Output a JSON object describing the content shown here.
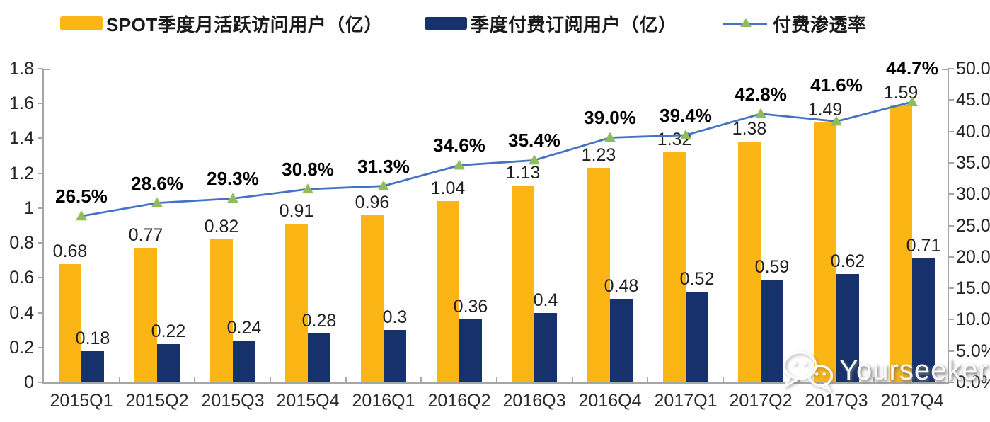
{
  "legend": [
    {
      "label": "SPOT季度月活跃访问用户（亿）",
      "swatch": "bar",
      "color": "#FBB616"
    },
    {
      "label": "季度付费订阅用户（亿）",
      "swatch": "bar",
      "color": "#17316D"
    },
    {
      "label": "付费渗透率",
      "swatch": "line",
      "color": "#4472C4",
      "marker_color": "#8FBD59"
    }
  ],
  "watermark": {
    "text": "Yourseeker",
    "icon": "wechat-logo"
  },
  "chart_data": {
    "type": "combo-bar-line",
    "title": "",
    "categories": [
      "2015Q1",
      "2015Q2",
      "2015Q3",
      "2015Q4",
      "2016Q1",
      "2016Q2",
      "2016Q3",
      "2016Q4",
      "2017Q1",
      "2017Q2",
      "2017Q3",
      "2017Q4"
    ],
    "series": [
      {
        "name": "SPOT季度月活跃访问用户（亿）",
        "type": "bar",
        "axis": "left",
        "color": "#FBB616",
        "values": [
          0.68,
          0.77,
          0.82,
          0.91,
          0.96,
          1.04,
          1.13,
          1.23,
          1.32,
          1.38,
          1.49,
          1.59
        ],
        "labels": [
          "0.68",
          "0.77",
          "0.82",
          "0.91",
          "0.96",
          "1.04",
          "1.13",
          "1.23",
          "1.32",
          "1.38",
          "1.49",
          "1.59"
        ]
      },
      {
        "name": "季度付费订阅用户（亿）",
        "type": "bar",
        "axis": "left",
        "color": "#17316D",
        "values": [
          0.18,
          0.22,
          0.24,
          0.28,
          0.3,
          0.36,
          0.4,
          0.48,
          0.52,
          0.59,
          0.62,
          0.71
        ],
        "labels": [
          "0.18",
          "0.22",
          "0.24",
          "0.28",
          "0.3",
          "0.36",
          "0.4",
          "0.48",
          "0.52",
          "0.59",
          "0.62",
          "0.71"
        ]
      },
      {
        "name": "付费渗透率",
        "type": "line",
        "axis": "right",
        "color": "#4472C4",
        "marker": "triangle",
        "marker_color": "#8FBD59",
        "values": [
          26.5,
          28.6,
          29.3,
          30.8,
          31.3,
          34.6,
          35.4,
          39.0,
          39.4,
          42.8,
          41.6,
          44.7
        ],
        "labels": [
          "26.5%",
          "28.6%",
          "29.3%",
          "30.8%",
          "31.3%",
          "34.6%",
          "35.4%",
          "39.0%",
          "39.4%",
          "42.8%",
          "41.6%",
          "44.7%"
        ]
      }
    ],
    "left_axis": {
      "min": 0,
      "max": 1.8,
      "step": 0.2,
      "ticks": [
        "0",
        "0.2",
        "0.4",
        "0.6",
        "0.8",
        "1",
        "1.2",
        "1.4",
        "1.6",
        "1.8"
      ]
    },
    "right_axis": {
      "min": 0,
      "max": 50,
      "step": 5,
      "ticks": [
        "0.0%",
        "5.0%",
        "10.0%",
        "15.0%",
        "20.0%",
        "25.0%",
        "30.0%",
        "35.0%",
        "40.0%",
        "45.0%",
        "50.0%"
      ]
    },
    "grid": false,
    "legend_position": "top"
  }
}
